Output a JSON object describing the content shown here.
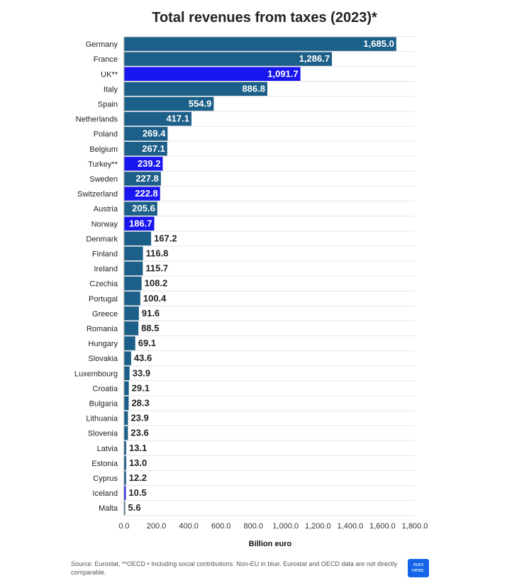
{
  "chart_data": {
    "type": "bar",
    "orientation": "horizontal",
    "title": "Total revenues from taxes (2023)*",
    "xlabel": "Billion euro",
    "ylabel": "",
    "xlim": [
      0,
      1800
    ],
    "xticks": [
      "0.0",
      "200.0",
      "400.0",
      "600.0",
      "800.0",
      "1,000.0",
      "1,200.0",
      "1,400.0",
      "1,600.0",
      "1,800.0"
    ],
    "grid": true,
    "colors": {
      "eu": "#1c5f88",
      "non_eu": "#1a16f0"
    },
    "categories": [
      "Germany",
      "France",
      "UK**",
      "Italy",
      "Spain",
      "Netherlands",
      "Poland",
      "Belgium",
      "Turkey**",
      "Sweden",
      "Switzerland",
      "Austria",
      "Norway",
      "Denmark",
      "Finland",
      "Ireland",
      "Czechia",
      "Portugal",
      "Greece",
      "Romania",
      "Hungary",
      "Slovakia",
      "Luxembourg",
      "Croatia",
      "Bulgaria",
      "Lithuania",
      "Slovenia",
      "Latvia",
      "Estonia",
      "Cyprus",
      "Iceland",
      "Malta"
    ],
    "values": [
      1685.0,
      1286.7,
      1091.7,
      886.8,
      554.9,
      417.1,
      269.4,
      267.1,
      239.2,
      227.8,
      222.8,
      205.6,
      186.7,
      167.2,
      116.8,
      115.7,
      108.2,
      100.4,
      91.6,
      88.5,
      69.1,
      43.6,
      33.9,
      29.1,
      28.3,
      23.9,
      23.6,
      13.1,
      13.0,
      12.2,
      10.5,
      5.6
    ],
    "value_labels": [
      "1,685.0",
      "1,286.7",
      "1,091.7",
      "886.8",
      "554.9",
      "417.1",
      "269.4",
      "267.1",
      "239.2",
      "227.8",
      "222.8",
      "205.6",
      "186.7",
      "167.2",
      "116.8",
      "115.7",
      "108.2",
      "100.4",
      "91.6",
      "88.5",
      "69.1",
      "43.6",
      "33.9",
      "29.1",
      "28.3",
      "23.9",
      "23.6",
      "13.1",
      "13.0",
      "12.2",
      "10.5",
      "5.6"
    ],
    "non_eu": [
      false,
      false,
      true,
      false,
      false,
      false,
      false,
      false,
      true,
      false,
      true,
      false,
      true,
      false,
      false,
      false,
      false,
      false,
      false,
      false,
      false,
      false,
      false,
      false,
      false,
      false,
      false,
      false,
      false,
      false,
      true,
      false
    ]
  },
  "source": "Source: Eurostat, **OECD • Including social contributions. Non-EU in blue. Eurostat and OECD data are not directly comparable.",
  "logo": {
    "line1": "euro",
    "line2": "news."
  }
}
